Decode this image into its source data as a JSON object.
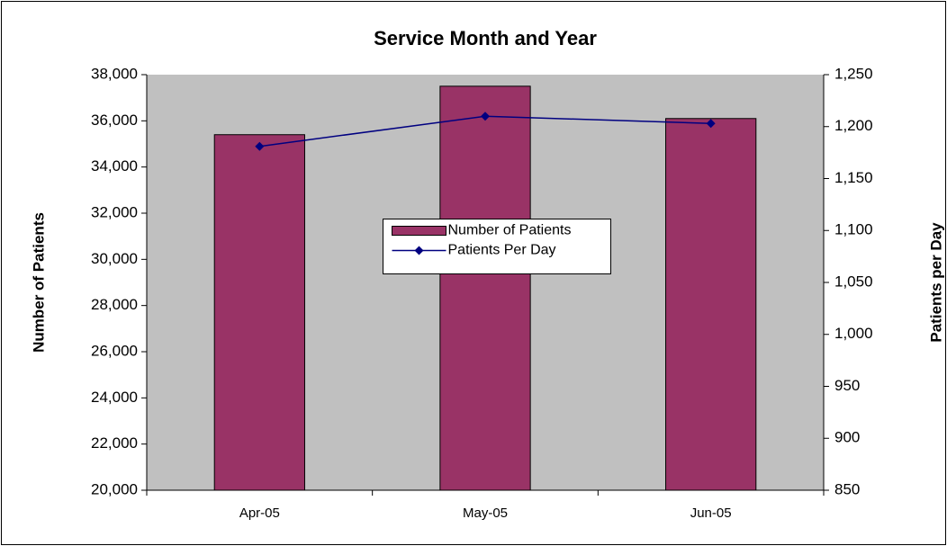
{
  "chart_data": {
    "type": "bar_line",
    "title": "Service Month and Year",
    "ylabel": "Number of Patients",
    "y2label": "Patients per Day",
    "categories": [
      "Apr-05",
      "May-05",
      "Jun-05"
    ],
    "series": [
      {
        "name": "Number of Patients",
        "type": "bar",
        "color": "#993366",
        "values": [
          35400,
          37500,
          36100
        ]
      },
      {
        "name": "Patients Per Day",
        "type": "line",
        "axis": "y2",
        "color": "#000080",
        "values": [
          1181,
          1210,
          1203
        ]
      }
    ],
    "ylim": [
      20000,
      38000
    ],
    "yticks": [
      {
        "value": 20000,
        "label": "20,000"
      },
      {
        "value": 22000,
        "label": "22,000"
      },
      {
        "value": 24000,
        "label": "24,000"
      },
      {
        "value": 26000,
        "label": "26,000"
      },
      {
        "value": 28000,
        "label": "28,000"
      },
      {
        "value": 30000,
        "label": "30,000"
      },
      {
        "value": 32000,
        "label": "32,000"
      },
      {
        "value": 34000,
        "label": "34,000"
      },
      {
        "value": 36000,
        "label": "36,000"
      },
      {
        "value": 38000,
        "label": "38,000"
      }
    ],
    "y2lim": [
      850,
      1250
    ],
    "y2ticks": [
      850,
      900,
      950,
      {
        "value": 1000,
        "label": "1,000"
      },
      {
        "value": 1050,
        "label": "1,050"
      },
      {
        "value": 1100,
        "label": "1,100"
      },
      {
        "value": 1150,
        "label": "1,150"
      },
      {
        "value": 1200,
        "label": "1,200"
      },
      {
        "value": 1250,
        "label": "1,250"
      }
    ],
    "plot_background": "#c0c0c0",
    "legend_position": "center"
  }
}
